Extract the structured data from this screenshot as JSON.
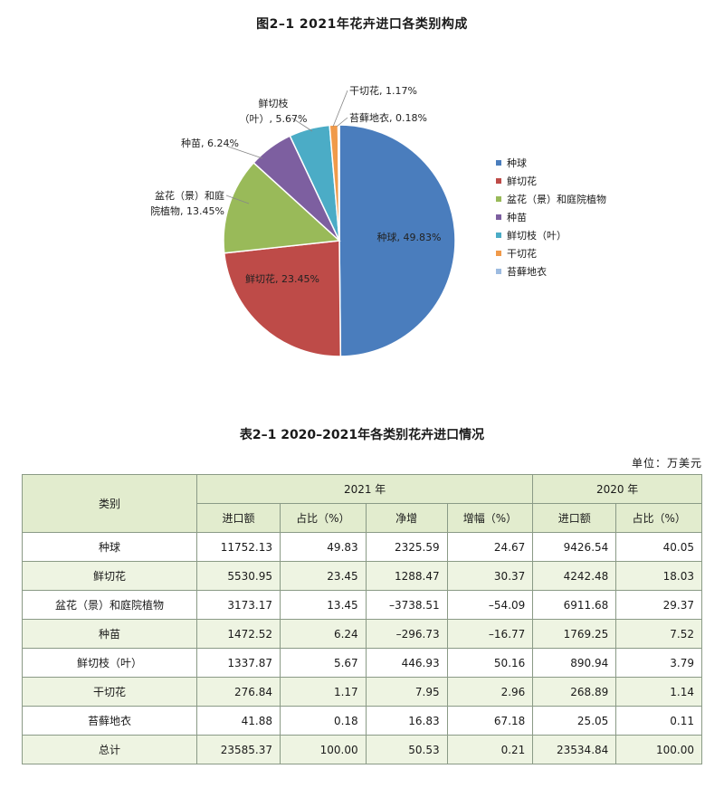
{
  "figure": {
    "title": "图2–1  2021年花卉进口各类别构成"
  },
  "chart_data": {
    "type": "pie",
    "title": "图2–1  2021年花卉进口各类别构成",
    "slices": [
      {
        "name": "种球",
        "value": 49.83,
        "label": "种球, 49.83%",
        "color": "#4a7dbd"
      },
      {
        "name": "鲜切花",
        "value": 23.45,
        "label": "鲜切花, 23.45%",
        "color": "#be4b48"
      },
      {
        "name": "盆花（景）和庭院植物",
        "value": 13.45,
        "label": "盆花（景）和庭院植物, 13.45%",
        "color": "#99ba59"
      },
      {
        "name": "种苗",
        "value": 6.24,
        "label": "种苗, 6.24%",
        "color": "#7d5fa0"
      },
      {
        "name": "鲜切枝（叶）",
        "value": 5.67,
        "label": "鲜切枝（叶）, 5.67%",
        "color": "#4bacc6"
      },
      {
        "name": "干切花",
        "value": 1.17,
        "label": "干切花, 1.17%",
        "color": "#f09a4a"
      },
      {
        "name": "苔藓地衣",
        "value": 0.18,
        "label": "苔藓地衣, 0.18%",
        "color": "#9dbbe0"
      }
    ],
    "legend_position": "right"
  },
  "table": {
    "title": "表2–1  2020–2021年各类别花卉进口情况",
    "unit": "单位：万美元",
    "header": {
      "category": "类别",
      "year_2021": "2021 年",
      "year_2020": "2020 年",
      "import_value": "进口额",
      "share": "占比（%）",
      "net_increase": "净增",
      "growth_rate": "增幅（%）",
      "import_value_2020": "进口额",
      "share_2020": "占比（%）"
    },
    "rows": [
      [
        "种球",
        "11752.13",
        "49.83",
        "2325.59",
        "24.67",
        "9426.54",
        "40.05"
      ],
      [
        "鲜切花",
        "5530.95",
        "23.45",
        "1288.47",
        "30.37",
        "4242.48",
        "18.03"
      ],
      [
        "盆花（景）和庭院植物",
        "3173.17",
        "13.45",
        "–3738.51",
        "–54.09",
        "6911.68",
        "29.37"
      ],
      [
        "种苗",
        "1472.52",
        "6.24",
        "–296.73",
        "–16.77",
        "1769.25",
        "7.52"
      ],
      [
        "鲜切枝（叶）",
        "1337.87",
        "5.67",
        "446.93",
        "50.16",
        "890.94",
        "3.79"
      ],
      [
        "干切花",
        "276.84",
        "1.17",
        "7.95",
        "2.96",
        "268.89",
        "1.14"
      ],
      [
        "苔藓地衣",
        "41.88",
        "0.18",
        "16.83",
        "67.18",
        "25.05",
        "0.11"
      ],
      [
        "总计",
        "23585.37",
        "100.00",
        "50.53",
        "0.21",
        "23534.84",
        "100.00"
      ]
    ]
  }
}
